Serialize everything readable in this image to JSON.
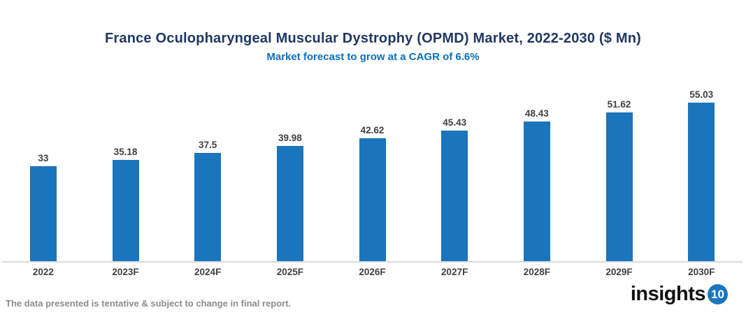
{
  "header": {
    "title": "France Oculopharyngeal Muscular Dystrophy (OPMD) Market, 2022-2030 ($ Mn)",
    "subtitle": "Market forecast to grow at a CAGR of 6.6%"
  },
  "chart_data": {
    "type": "bar",
    "categories": [
      "2022",
      "2023F",
      "2024F",
      "2025F",
      "2026F",
      "2027F",
      "2028F",
      "2029F",
      "2030F"
    ],
    "values": [
      33,
      35.18,
      37.5,
      39.98,
      42.62,
      45.43,
      48.43,
      51.62,
      55.03
    ],
    "value_labels": [
      "33",
      "35.18",
      "37.5",
      "39.98",
      "42.62",
      "45.43",
      "48.43",
      "51.62",
      "55.03"
    ],
    "title": "France Oculopharyngeal Muscular Dystrophy (OPMD) Market, 2022-2030 ($ Mn)",
    "subtitle": "Market forecast to grow at a CAGR of 6.6%",
    "xlabel": "",
    "ylabel": "",
    "ylim": [
      0,
      55.03
    ],
    "grid": false,
    "legend": false,
    "data_labels": true
  },
  "footer": {
    "disclaimer": "The data presented is tentative & subject to change in final report.",
    "logo_text": "insights",
    "logo_badge": "10"
  },
  "colors": {
    "title": "#1F3864",
    "subtitle": "#0B70C0",
    "bar": "#1B75BC",
    "label": "#404040",
    "axis_line": "#D9D9D9",
    "footer_text": "#8C8C8C",
    "logo_badge_bg": "#1B75BC"
  }
}
